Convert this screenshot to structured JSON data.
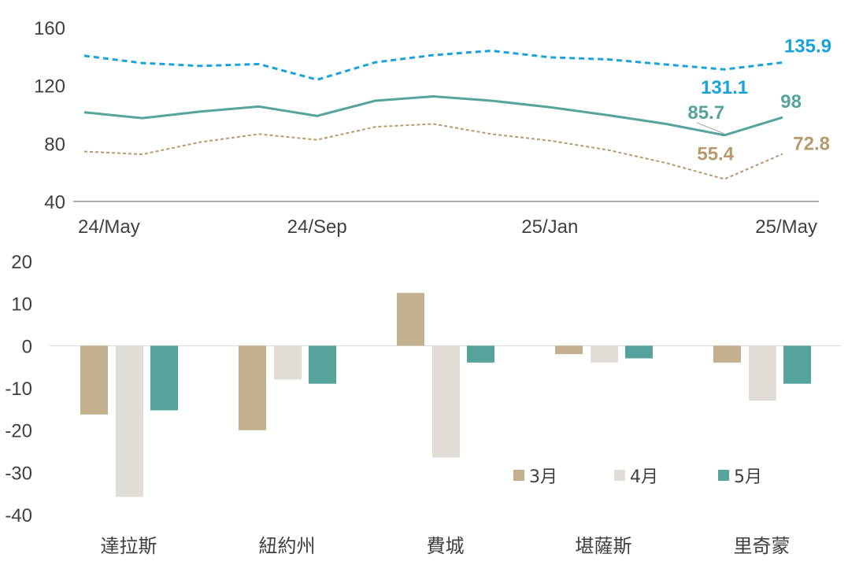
{
  "chart_data": [
    {
      "type": "line",
      "title": "",
      "xlabel": "",
      "ylabel": "",
      "ylim": [
        40,
        160
      ],
      "yticks": [
        40,
        80,
        120,
        160
      ],
      "x_tick_labels": [
        "24/May",
        "24/Sep",
        "25/Jan",
        "25/May"
      ],
      "x": [
        "2024-05",
        "2024-06",
        "2024-07",
        "2024-08",
        "2024-09",
        "2024-10",
        "2024-11",
        "2024-12",
        "2025-01",
        "2025-02",
        "2025-03",
        "2025-04",
        "2025-05"
      ],
      "grid": false,
      "series": [
        {
          "color": "#1aa3d9",
          "style": "dashed",
          "values": [
            140.5,
            135.5,
            133.5,
            134.8,
            124.0,
            136.0,
            141.0,
            144.0,
            139.5,
            138.0,
            134.5,
            131.1,
            135.9
          ],
          "point_labels": [
            {
              "index": 11,
              "text": "131.1"
            },
            {
              "index": 12,
              "text": "135.9"
            }
          ]
        },
        {
          "color": "#55a39b",
          "style": "solid",
          "values": [
            101.5,
            97.5,
            102.0,
            105.5,
            99.0,
            109.5,
            112.5,
            109.5,
            105.0,
            99.5,
            93.5,
            85.7,
            98.0
          ],
          "point_labels": [
            {
              "index": 11,
              "text": "85.7"
            },
            {
              "index": 12,
              "text": "98"
            }
          ]
        },
        {
          "color": "#b59a6e",
          "style": "dotted",
          "values": [
            74.5,
            72.5,
            81.0,
            86.5,
            82.5,
            91.5,
            93.5,
            86.5,
            82.0,
            75.5,
            66.5,
            55.4,
            72.8
          ],
          "point_labels": [
            {
              "index": 11,
              "text": "55.4"
            },
            {
              "index": 12,
              "text": "72.8"
            }
          ]
        }
      ]
    },
    {
      "type": "bar",
      "title": "",
      "xlabel": "",
      "ylabel": "",
      "ylim": [
        -40,
        20
      ],
      "yticks": [
        -40,
        -30,
        -20,
        -10,
        0,
        10,
        20
      ],
      "categories": [
        "達拉斯",
        "紐約州",
        "費城",
        "堪薩斯",
        "里奇蒙"
      ],
      "legend_position": "bottom-right",
      "series": [
        {
          "name": "3月",
          "color": "#c2b08e",
          "values": [
            -16.3,
            -20.0,
            12.5,
            -2.0,
            -4.0
          ]
        },
        {
          "name": "4月",
          "color": "#e0ddd6",
          "values": [
            -35.8,
            -8.0,
            -26.5,
            -4.0,
            -13.0
          ]
        },
        {
          "name": "5月",
          "color": "#55a39b",
          "values": [
            -15.3,
            -9.0,
            -4.0,
            -3.0,
            -9.0
          ]
        }
      ]
    }
  ]
}
